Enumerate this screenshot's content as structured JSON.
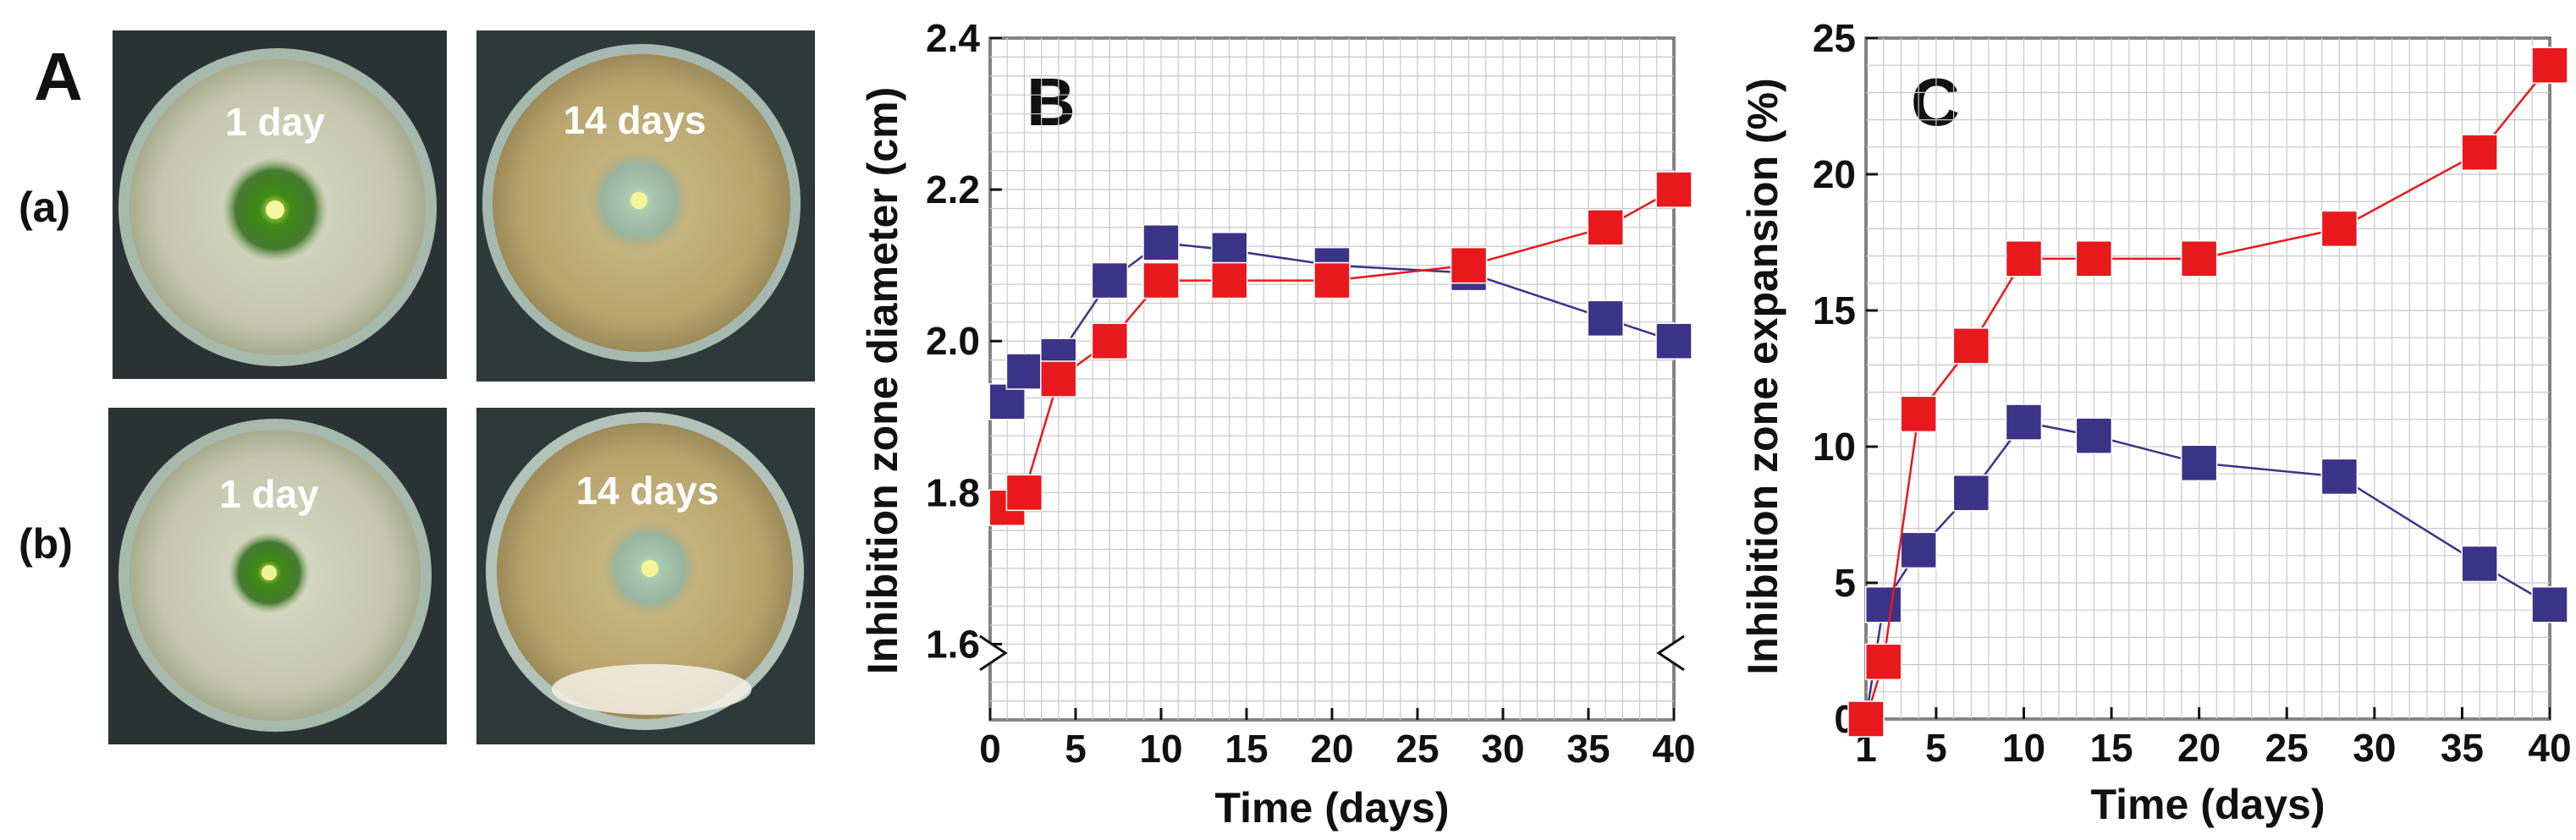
{
  "figure": {
    "panel_a": {
      "letter": "A",
      "rows": [
        {
          "label": "(a)",
          "photos": [
            {
              "caption": "1 day"
            },
            {
              "caption": "14 days"
            }
          ]
        },
        {
          "label": "(b)",
          "photos": [
            {
              "caption": "1 day"
            },
            {
              "caption": "14 days"
            }
          ]
        }
      ]
    }
  },
  "colors": {
    "series_a": "#e8191c",
    "series_b": "#3b3388"
  },
  "chart_data": [
    {
      "panel": "B",
      "type": "line",
      "title": "",
      "xlabel": "Time (days)",
      "ylabel": "Inhibition zone diameter (cm)",
      "xlim": [
        0,
        40
      ],
      "ylim": [
        1.5,
        2.4
      ],
      "xticks": [
        0,
        5,
        10,
        15,
        20,
        25,
        30,
        35,
        40
      ],
      "xtick_labels": [
        "0",
        "5",
        "10",
        "15",
        "20",
        "25",
        "30",
        "35",
        "40"
      ],
      "yticks": [
        1.6,
        1.8,
        2.0,
        2.2,
        2.4
      ],
      "ytick_labels": [
        "1.6",
        "1.8",
        "2.0",
        "2.2",
        "2.4"
      ],
      "grid": true,
      "axis_break": true,
      "series": [
        {
          "name": "series-b-blue",
          "color": "#3b3388",
          "x": [
            1,
            2,
            4,
            7,
            10,
            14,
            20,
            28,
            36,
            40
          ],
          "y": [
            1.92,
            1.96,
            1.98,
            2.08,
            2.13,
            2.12,
            2.1,
            2.09,
            2.03,
            2.0
          ]
        },
        {
          "name": "series-a-red",
          "color": "#e8191c",
          "x": [
            1,
            2,
            4,
            7,
            10,
            14,
            20,
            28,
            36,
            40
          ],
          "y": [
            1.78,
            1.8,
            1.95,
            2.0,
            2.08,
            2.08,
            2.08,
            2.1,
            2.15,
            2.2
          ]
        }
      ]
    },
    {
      "panel": "C",
      "type": "line",
      "title": "",
      "xlabel": "Time (days)",
      "ylabel": "Inhibition zone expansion (%)",
      "xlim": [
        1,
        40
      ],
      "ylim": [
        0,
        25
      ],
      "xticks": [
        1,
        5,
        10,
        15,
        20,
        25,
        30,
        35,
        40
      ],
      "xtick_labels": [
        "1",
        "5",
        "10",
        "15",
        "20",
        "25",
        "30",
        "35",
        "40"
      ],
      "yticks": [
        0,
        5,
        10,
        15,
        20,
        25
      ],
      "ytick_labels": [
        "0",
        "5",
        "10",
        "15",
        "20",
        "25"
      ],
      "grid": true,
      "axis_break": false,
      "series": [
        {
          "name": "series-b-blue",
          "color": "#3b3388",
          "x": [
            1,
            2,
            4,
            7,
            10,
            14,
            20,
            28,
            36,
            40
          ],
          "y": [
            0,
            4.2,
            6.2,
            8.3,
            10.9,
            10.4,
            9.4,
            8.9,
            5.7,
            4.2
          ]
        },
        {
          "name": "series-a-red",
          "color": "#e8191c",
          "x": [
            1,
            2,
            4,
            7,
            10,
            14,
            20,
            28,
            36,
            40
          ],
          "y": [
            0,
            2.1,
            11.2,
            13.7,
            16.9,
            16.9,
            16.9,
            18.0,
            20.8,
            24.0
          ]
        }
      ]
    }
  ]
}
